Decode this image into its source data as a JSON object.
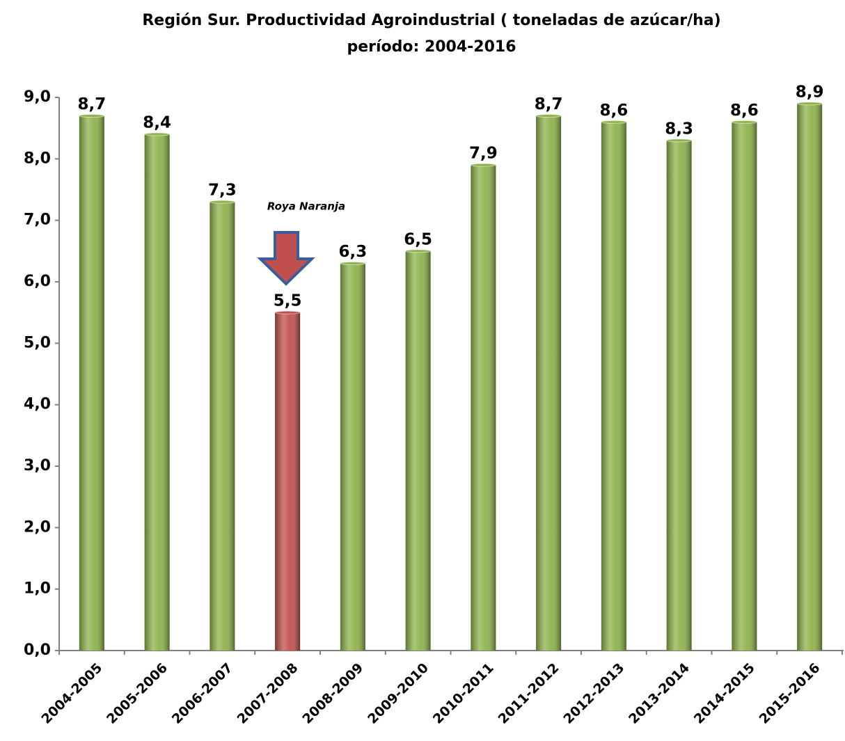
{
  "chart_data": {
    "type": "bar",
    "title": "Región Sur. Productividad Agroindustrial ( toneladas de azúcar/ha)",
    "subtitle": "período: 2004-2016",
    "categories": [
      "2004-2005",
      "2005-2006",
      "2006-2007",
      "2007-2008",
      "2008-2009",
      "2009-2010",
      "2010-2011",
      "2011-2012",
      "2012-2013",
      "2013-2014",
      "2014-2015",
      "2015-2016"
    ],
    "values": [
      8.7,
      8.4,
      7.3,
      5.5,
      6.3,
      6.5,
      7.9,
      8.7,
      8.6,
      8.3,
      8.6,
      8.9
    ],
    "value_labels": [
      "8,7",
      "8,4",
      "7,3",
      "5,5",
      "6,3",
      "6,5",
      "7,9",
      "8,7",
      "8,6",
      "8,3",
      "8,6",
      "8,9"
    ],
    "colors": [
      "#8db34a",
      "#8db34a",
      "#8db34a",
      "#c0504d",
      "#8db34a",
      "#8db34a",
      "#8db34a",
      "#8db34a",
      "#8db34a",
      "#8db34a",
      "#8db34a",
      "#8db34a"
    ],
    "ylim": [
      0,
      9
    ],
    "yticks": [
      {
        "value": 0,
        "label": "0,0"
      },
      {
        "value": 1,
        "label": "1,0"
      },
      {
        "value": 2,
        "label": "2,0"
      },
      {
        "value": 3,
        "label": "3,0"
      },
      {
        "value": 4,
        "label": "4,0"
      },
      {
        "value": 5,
        "label": "5,0"
      },
      {
        "value": 6,
        "label": "6,0"
      },
      {
        "value": 7,
        "label": "7,0"
      },
      {
        "value": 8,
        "label": "8,0"
      },
      {
        "value": 9,
        "label": "9,0"
      }
    ],
    "grid": false,
    "annotation": "Roya Naranja"
  }
}
